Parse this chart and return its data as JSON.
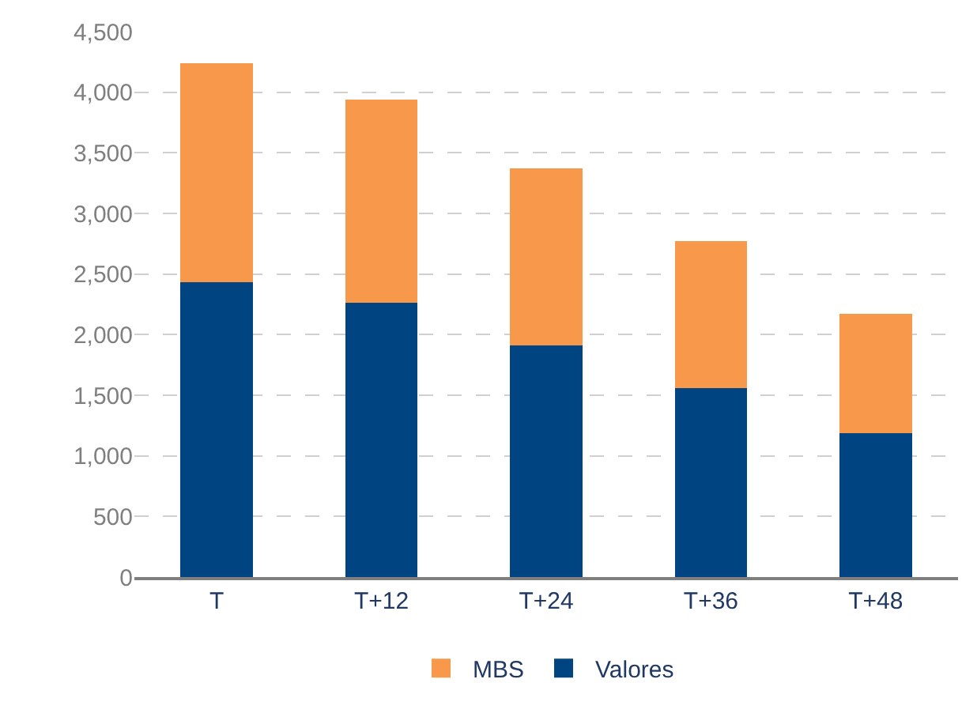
{
  "chart_data": {
    "type": "bar",
    "stacked": true,
    "categories": [
      "T",
      "T+12",
      "T+24",
      "T+36",
      "T+48"
    ],
    "series": [
      {
        "name": "Valores",
        "color": "#004481",
        "values": [
          2430,
          2260,
          1910,
          1560,
          1190
        ]
      },
      {
        "name": "MBS",
        "color": "#f7984a",
        "values": [
          1810,
          1680,
          1460,
          1210,
          980
        ]
      }
    ],
    "ylim": [
      0,
      4500
    ],
    "yticks": [
      {
        "value": 0,
        "label": "0"
      },
      {
        "value": 500,
        "label": "500"
      },
      {
        "value": 1000,
        "label": "1,000"
      },
      {
        "value": 1500,
        "label": "1,500"
      },
      {
        "value": 2000,
        "label": "2,000"
      },
      {
        "value": 2500,
        "label": "2,500"
      },
      {
        "value": 3000,
        "label": "3,000"
      },
      {
        "value": 3500,
        "label": "3,500"
      },
      {
        "value": 4000,
        "label": "4,000"
      },
      {
        "value": 4500,
        "label": "4,500"
      }
    ],
    "grid": "y",
    "legend": "bottom"
  }
}
